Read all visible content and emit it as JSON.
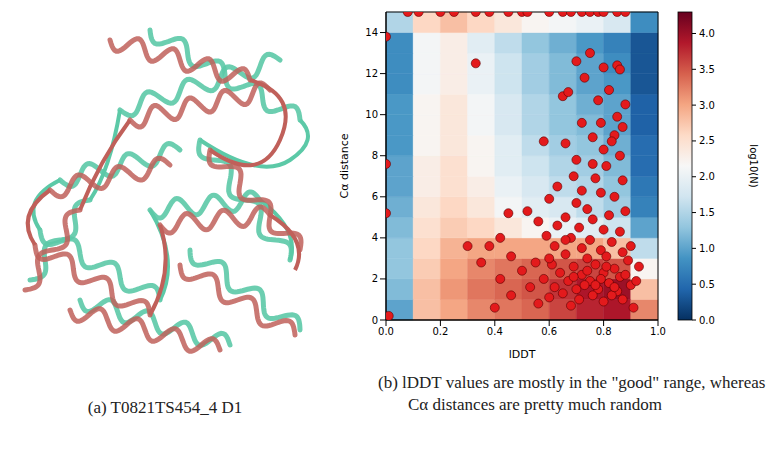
{
  "captions": {
    "a": "(a) T0821TS454_4 D1",
    "b": "(b) lDDT values are mostly in the \"good\" range, whereas Cα distances are pretty much random"
  },
  "chart_data": {
    "type": "scatter",
    "x_label": "lDDT",
    "y_label": "Cα distance",
    "xlim": [
      0,
      1
    ],
    "xticks": [
      {
        "value": 0,
        "label": "0.0"
      },
      {
        "value": 0.2,
        "label": "0.2"
      },
      {
        "value": 0.4,
        "label": "0.4"
      },
      {
        "value": 0.6,
        "label": "0.6"
      },
      {
        "value": 0.8,
        "label": "0.8"
      },
      {
        "value": 1,
        "label": "1.0"
      }
    ],
    "ylim": [
      0,
      15
    ],
    "yticks": [
      0,
      2,
      4,
      6,
      8,
      10,
      12,
      14
    ],
    "series": [
      {
        "color": "#e31a1c",
        "marker": "circle",
        "x": [
          0.08,
          0.12,
          0.2,
          0.25,
          0.33,
          0.38,
          0.45,
          0.5,
          0.52,
          0.6,
          0.65,
          0.68,
          0.72,
          0.75,
          0.78,
          0.8,
          0.85,
          0.88,
          0,
          0,
          0,
          0.01,
          0.33,
          0.65,
          0.67,
          0.7,
          0.73,
          0.75,
          0.8,
          0.85,
          0.86,
          0.82,
          0.78,
          0.88,
          0.85,
          0.79,
          0.72,
          0.87,
          0.84,
          0.83,
          0.8,
          0.76,
          0.58,
          0.66,
          0.86,
          0.7,
          0.76,
          0.81,
          0.69,
          0.77,
          0.87,
          0.63,
          0.72,
          0.79,
          0.84,
          0.6,
          0.7,
          0.74,
          0.88,
          0.45,
          0.52,
          0.82,
          0.66,
          0.76,
          0.56,
          0.63,
          0.71,
          0.8,
          0.86,
          0.42,
          0.59,
          0.68,
          0.75,
          0.83,
          0.3,
          0.38,
          0.62,
          0.72,
          0.79,
          0.87,
          0.46,
          0.66,
          0.74,
          0.81,
          0.89,
          0.35,
          0.55,
          0.61,
          0.69,
          0.77,
          0.84,
          0.5,
          0.64,
          0.72,
          0.8,
          0.86,
          0.42,
          0.58,
          0.67,
          0.75,
          0.82,
          0.9,
          0.53,
          0.62,
          0.7,
          0.78,
          0.85,
          0.73,
          0.79,
          0.88,
          0.65,
          0.76,
          0.83,
          0.46,
          0.6,
          0.71,
          0.8,
          0.87,
          0.4,
          0.56,
          0.68,
          0.91,
          0.74,
          0.81,
          0.77,
          0.69,
          0.84,
          0.92,
          0.93,
          0.9,
          0.66,
          0.6
        ],
        "values": [
          15,
          15,
          15,
          15,
          15,
          15,
          15,
          15,
          15,
          15,
          15,
          15,
          15,
          15,
          15,
          15,
          15,
          15,
          13.8,
          7.6,
          5.2,
          0.2,
          12.5,
          10.9,
          11.1,
          12.6,
          11.8,
          13,
          12.3,
          12.4,
          12.2,
          11.2,
          10.7,
          10.5,
          9.9,
          9.6,
          9.6,
          9.4,
          9,
          8.7,
          8.3,
          8.9,
          8.7,
          8.6,
          8,
          7.8,
          7.6,
          7.5,
          7,
          6.9,
          6.8,
          6.5,
          6.3,
          6.2,
          6,
          5.9,
          5.7,
          5.4,
          5.3,
          5.2,
          5.3,
          5.1,
          5,
          4.9,
          4.8,
          4.6,
          4.5,
          4.4,
          4.3,
          4,
          4.1,
          4,
          3.9,
          3.8,
          3.6,
          3.6,
          3.6,
          3.5,
          3.4,
          3.3,
          3.1,
          3.2,
          3,
          3.1,
          2.9,
          2.8,
          2.8,
          2.7,
          2.6,
          2.7,
          2.5,
          2.4,
          2.3,
          2.2,
          2.3,
          2.1,
          2,
          2,
          1.9,
          1.9,
          1.8,
          1.7,
          1.6,
          1.6,
          1.5,
          1.5,
          1.4,
          1.7,
          2,
          2.2,
          1.3,
          1.2,
          1.2,
          1.2,
          1.1,
          1,
          0.9,
          1,
          0.6,
          0.8,
          0.7,
          0.6,
          2.4,
          2.6,
          1.7,
          2.1,
          1.6,
          1.9,
          2.6,
          3.6,
          3.9,
          3
        ]
      }
    ],
    "heatmap": {
      "x_edges": [
        0,
        0.1,
        0.2,
        0.3,
        0.4,
        0.5,
        0.6,
        0.7,
        0.8,
        0.9,
        1
      ],
      "y_edges": [
        0,
        1,
        2,
        3,
        4,
        5,
        6,
        7,
        8,
        9,
        10,
        11,
        12,
        13,
        14,
        15
      ],
      "values": [
        [
          1.0,
          2.8,
          3.0,
          3.2,
          3.3,
          3.4,
          3.6,
          3.8,
          3.9,
          3.2
        ],
        [
          1.2,
          2.8,
          3.1,
          3.3,
          3.4,
          3.5,
          3.7,
          3.9,
          4.0,
          2.8
        ],
        [
          1.3,
          2.7,
          3.0,
          3.2,
          3.3,
          3.4,
          3.5,
          3.6,
          3.5,
          2.2
        ],
        [
          1.3,
          2.6,
          2.9,
          3.0,
          3.0,
          3.0,
          3.0,
          3.0,
          2.8,
          1.6
        ],
        [
          1.2,
          2.5,
          2.7,
          2.6,
          2.4,
          2.2,
          2.0,
          1.9,
          1.7,
          1.0
        ],
        [
          1.1,
          2.4,
          2.6,
          2.4,
          2.1,
          1.9,
          1.8,
          1.6,
          1.4,
          0.7
        ],
        [
          1.0,
          2.3,
          2.5,
          2.3,
          2.0,
          1.8,
          1.6,
          1.5,
          1.3,
          0.6
        ],
        [
          1.0,
          2.3,
          2.5,
          2.2,
          1.9,
          1.7,
          1.5,
          1.4,
          1.2,
          0.5
        ],
        [
          0.9,
          2.2,
          2.4,
          2.2,
          1.9,
          1.6,
          1.4,
          1.3,
          1.1,
          0.5
        ],
        [
          0.9,
          2.2,
          2.4,
          2.1,
          1.8,
          1.5,
          1.3,
          1.2,
          1.0,
          0.4
        ],
        [
          0.9,
          2.2,
          2.4,
          2.1,
          1.8,
          1.5,
          1.3,
          1.1,
          1.0,
          0.4
        ],
        [
          0.8,
          2.1,
          2.3,
          2.0,
          1.7,
          1.4,
          1.2,
          1.0,
          0.9,
          0.3
        ],
        [
          0.8,
          2.1,
          2.3,
          2.0,
          1.7,
          1.4,
          1.2,
          1.0,
          0.8,
          0.3
        ],
        [
          0.8,
          2.1,
          2.3,
          1.9,
          1.6,
          1.3,
          1.1,
          0.9,
          0.7,
          0.3
        ],
        [
          1.5,
          2.6,
          2.8,
          2.6,
          2.4,
          2.2,
          2.1,
          2.0,
          1.8,
          0.8
        ]
      ]
    },
    "colorbar": {
      "label": "log10(N)",
      "range": [
        0,
        4.3
      ],
      "ticks": [
        {
          "value": 0,
          "label": "0.0"
        },
        {
          "value": 0.5,
          "label": "0.5"
        },
        {
          "value": 1,
          "label": "1.0"
        },
        {
          "value": 1.5,
          "label": "1.5"
        },
        {
          "value": 2,
          "label": "2.0"
        },
        {
          "value": 2.5,
          "label": "2.5"
        },
        {
          "value": 3,
          "label": "3.0"
        },
        {
          "value": 3.5,
          "label": "3.5"
        },
        {
          "value": 4,
          "label": "4.0"
        }
      ]
    }
  }
}
